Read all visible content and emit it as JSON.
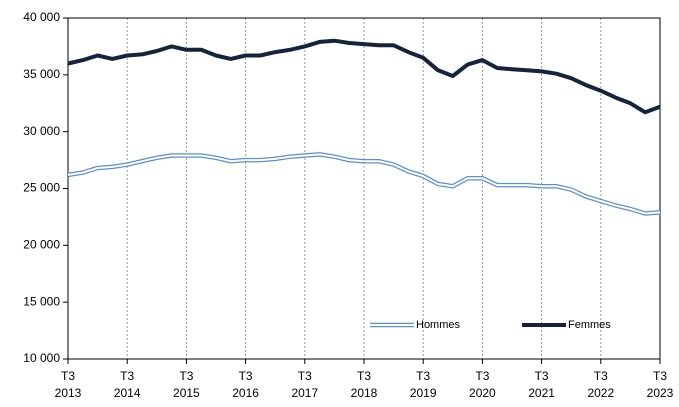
{
  "chart_data": {
    "type": "line",
    "categories": [
      "T3\n2013",
      null,
      null,
      null,
      "T3\n2014",
      null,
      null,
      null,
      "T3\n2015",
      null,
      null,
      null,
      "T3\n2016",
      null,
      null,
      null,
      "T3\n2017",
      null,
      null,
      null,
      "T3\n2018",
      null,
      null,
      null,
      "T3\n2019",
      null,
      null,
      null,
      "T3\n2020",
      null,
      null,
      null,
      "T3\n2021",
      null,
      null,
      null,
      "T3\n2022",
      null,
      null,
      null,
      "T3\n2023"
    ],
    "series": [
      {
        "name": "Hommes",
        "color": "#5b8fd0",
        "style": "double",
        "values": [
          26200,
          26400,
          26800,
          26900,
          27100,
          27400,
          27700,
          27900,
          27900,
          27900,
          27700,
          27400,
          27500,
          27500,
          27600,
          27800,
          27900,
          28000,
          27800,
          27500,
          27400,
          27400,
          27100,
          26500,
          26100,
          25400,
          25200,
          25900,
          25900,
          25300,
          25300,
          25300,
          25200,
          25200,
          24900,
          24300,
          23900,
          23500,
          23200,
          22800,
          22900
        ]
      },
      {
        "name": "Femmes",
        "color": "#14243d",
        "style": "solid",
        "values": [
          36000,
          36300,
          36700,
          36400,
          36700,
          36800,
          37100,
          37500,
          37200,
          37200,
          36700,
          36400,
          36700,
          36700,
          37000,
          37200,
          37500,
          37900,
          38000,
          37800,
          37700,
          37600,
          37600,
          37000,
          36500,
          35400,
          34900,
          35900,
          36300,
          35600,
          35500,
          35400,
          35300,
          35100,
          34700,
          34100,
          33600,
          33000,
          32500,
          31700,
          32200
        ]
      }
    ],
    "ylim": [
      10000,
      40000
    ],
    "yticks": [
      {
        "value": 10000,
        "label": "10 000"
      },
      {
        "value": 15000,
        "label": "15 000"
      },
      {
        "value": 20000,
        "label": "20 000"
      },
      {
        "value": 25000,
        "label": "25 000"
      },
      {
        "value": 30000,
        "label": "30 000"
      },
      {
        "value": 35000,
        "label": "35 000"
      },
      {
        "value": 40000,
        "label": "40 000"
      }
    ],
    "xgrid": true,
    "legend": "bottom"
  }
}
